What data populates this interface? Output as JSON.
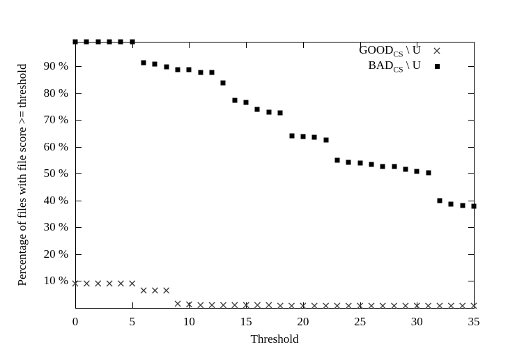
{
  "figure": {
    "background_color": "#ffffff",
    "text_color": "#000000"
  },
  "chart_data": {
    "type": "scatter",
    "title": "",
    "xlabel": "Threshold",
    "ylabel": "Percentage of files with file score >= threshold",
    "xlim": [
      0,
      35
    ],
    "ylim": [
      0,
      99.2
    ],
    "xticks": [
      0,
      5,
      10,
      15,
      20,
      25,
      30,
      35
    ],
    "yticks": [
      10,
      20,
      30,
      40,
      50,
      60,
      70,
      80,
      90
    ],
    "ytick_suffix": " %",
    "grid": false,
    "legend_position": "top-right-inside",
    "x": [
      0,
      1,
      2,
      3,
      4,
      5,
      6,
      7,
      8,
      9,
      10,
      11,
      12,
      13,
      14,
      15,
      16,
      17,
      18,
      19,
      20,
      21,
      22,
      23,
      24,
      25,
      26,
      27,
      28,
      29,
      30,
      31,
      32,
      33,
      34,
      35
    ],
    "series": [
      {
        "id": "good",
        "name": "GOOD_CS \\ U",
        "label_main": "GOOD",
        "label_sub": "CS",
        "label_rest": " \\ U",
        "marker": "x",
        "marker_glyph": "×",
        "color": "#3d3d3d",
        "values": [
          9,
          9,
          9,
          9,
          9,
          9.2,
          6.5,
          6.4,
          6.4,
          1.6,
          1.4,
          1.1,
          1,
          1,
          1,
          1,
          1,
          1,
          0.9,
          0.9,
          0.9,
          0.8,
          0.8,
          0.8,
          0.8,
          0.8,
          0.8,
          0.8,
          0.8,
          0.8,
          0.8,
          0.8,
          0.7,
          0.7,
          0.7,
          0.7
        ]
      },
      {
        "id": "bad",
        "name": "BAD_CS \\ U",
        "label_main": "BAD",
        "label_sub": "CS",
        "label_rest": " \\ U",
        "marker": "square",
        "marker_glyph": "■",
        "color": "#000000",
        "values": [
          99.2,
          99.2,
          99.2,
          99.2,
          99.2,
          99.2,
          91.4,
          90.9,
          89.9,
          88.9,
          88.8,
          87.9,
          87.7,
          84,
          77.5,
          76.5,
          74,
          73,
          72.7,
          64.2,
          63.8,
          63.5,
          62.7,
          55,
          54.2,
          53.9,
          53.4,
          52.7,
          52.8,
          51.8,
          50.8,
          50.5,
          40.1,
          38.8,
          38.3,
          37.9
        ]
      }
    ]
  }
}
